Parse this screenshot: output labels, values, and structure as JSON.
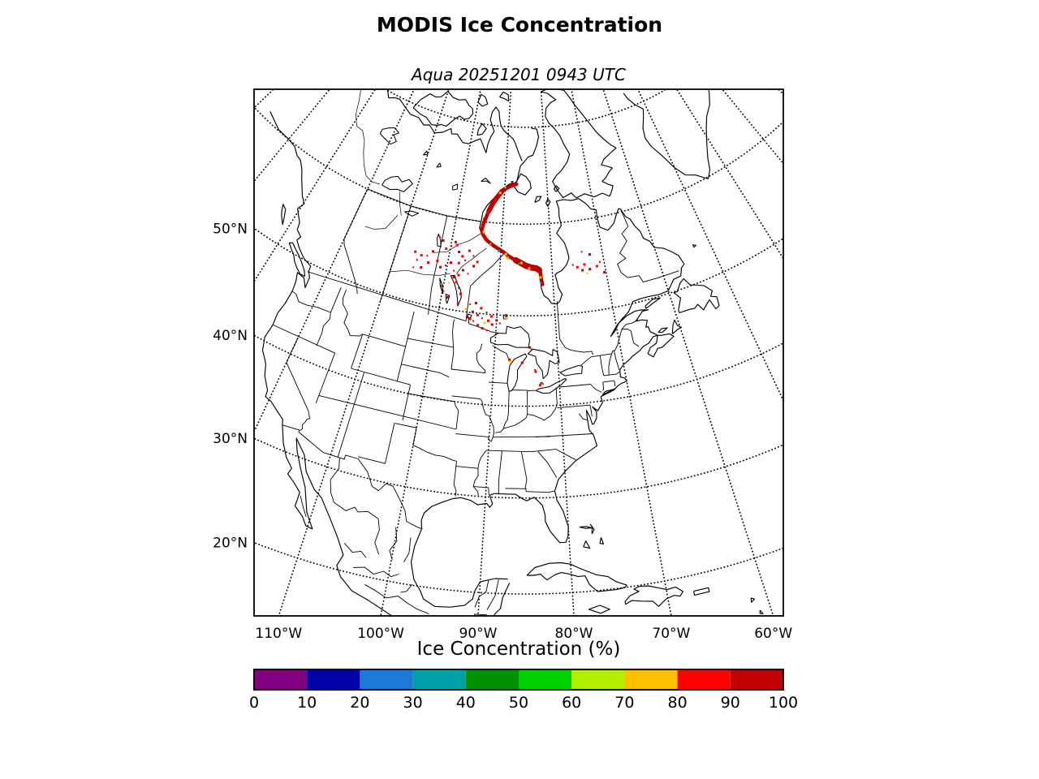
{
  "figure": {
    "title": "MODIS Ice Concentration",
    "subtitle": "Aqua 20251201 0943 UTC"
  },
  "map": {
    "lat_ticks": [
      {
        "label": "50°N",
        "value": 50
      },
      {
        "label": "40°N",
        "value": 40
      },
      {
        "label": "30°N",
        "value": 30
      },
      {
        "label": "20°N",
        "value": 20
      }
    ],
    "lon_ticks": [
      {
        "label": "110°W",
        "value": -110
      },
      {
        "label": "100°W",
        "value": -100
      },
      {
        "label": "90°W",
        "value": -90
      },
      {
        "label": "80°W",
        "value": -80
      },
      {
        "label": "70°W",
        "value": -70
      },
      {
        "label": "60°W",
        "value": -60
      }
    ],
    "line_color": "#000000"
  },
  "colorbar": {
    "title": "Ice Concentration (%)",
    "tick_labels": [
      "0",
      "10",
      "20",
      "30",
      "40",
      "50",
      "60",
      "70",
      "80",
      "90",
      "100"
    ],
    "colors": [
      "#800080",
      "#0000a8",
      "#1e78d8",
      "#00a0a8",
      "#009000",
      "#00d000",
      "#b0f000",
      "#ffc000",
      "#ff0000",
      "#c00000"
    ]
  },
  "chart_data": {
    "type": "heatmap",
    "title": "MODIS Ice Concentration",
    "subtitle": "Aqua 20251201 0943 UTC",
    "region": "North America (conic projection)",
    "x_tick_labels": [
      "110°W",
      "100°W",
      "90°W",
      "80°W",
      "70°W",
      "60°W"
    ],
    "y_tick_labels": [
      "50°N",
      "40°N",
      "30°N",
      "20°N"
    ],
    "colorbar": {
      "label": "Ice Concentration (%)",
      "ticks": [
        0,
        10,
        20,
        30,
        40,
        50,
        60,
        70,
        80,
        90,
        100
      ],
      "colors": [
        "#800080",
        "#0000a8",
        "#1e78d8",
        "#00a0a8",
        "#009000",
        "#00d000",
        "#b0f000",
        "#ffc000",
        "#ff0000",
        "#c00000"
      ]
    },
    "ice_band_pct": 95,
    "ice_band": {
      "main": [
        [
          -87.3,
          64.2
        ],
        [
          -88.6,
          64.0
        ],
        [
          -89.7,
          63.7
        ],
        [
          -90.5,
          63.4
        ],
        [
          -90.8,
          63.2
        ],
        [
          -91.9,
          62.5
        ],
        [
          -92.6,
          61.9
        ],
        [
          -93.3,
          61.1
        ],
        [
          -93.7,
          60.4
        ],
        [
          -94.1,
          59.7
        ],
        [
          -94.3,
          59.1
        ],
        [
          -93.9,
          58.6
        ],
        [
          -93.1,
          58.1
        ],
        [
          -92.3,
          57.8
        ],
        [
          -91.4,
          57.5
        ],
        [
          -90.4,
          57.2
        ],
        [
          -89.4,
          56.9
        ],
        [
          -88.4,
          56.5
        ],
        [
          -87.4,
          56.2
        ],
        [
          -86.4,
          55.9
        ],
        [
          -85.4,
          55.6
        ],
        [
          -84.4,
          55.4
        ],
        [
          -83.4,
          55.3
        ],
        [
          -82.6,
          55.2
        ],
        [
          -82.3,
          54.7
        ],
        [
          -82.2,
          54.1
        ],
        [
          -82.0,
          53.5
        ]
      ],
      "south_thick": [
        [
          -87.0,
          56.1
        ],
        [
          -86.0,
          55.8
        ],
        [
          -85.0,
          55.5
        ],
        [
          -84.0,
          55.3
        ],
        [
          -83.0,
          55.2
        ],
        [
          -82.5,
          55.0
        ]
      ],
      "upper_thick": [
        [
          -90.6,
          63.4
        ],
        [
          -91.8,
          62.6
        ],
        [
          -92.5,
          62.0
        ],
        [
          -93.2,
          61.2
        ]
      ],
      "james": [
        [
          -82.2,
          54.8
        ],
        [
          -82.1,
          54.0
        ],
        [
          -81.9,
          53.4
        ]
      ]
    },
    "ice_points": [
      [
        -90.5,
        63.6,
        95
      ],
      [
        -91.3,
        63.0,
        95
      ],
      [
        -92.0,
        62.4,
        85
      ],
      [
        -92.8,
        61.6,
        95
      ],
      [
        -93.5,
        61.0,
        85
      ],
      [
        -91.0,
        63.2,
        75
      ],
      [
        -89.9,
        63.8,
        65
      ],
      [
        -88.3,
        64.4,
        95
      ],
      [
        -94.0,
        60.3,
        95
      ],
      [
        -94.3,
        59.6,
        85
      ],
      [
        -99.2,
        57.4,
        95
      ],
      [
        -98.8,
        57.1,
        85
      ],
      [
        -99.9,
        56.9,
        95
      ],
      [
        -100.8,
        56.5,
        85
      ],
      [
        -101.7,
        57.3,
        95
      ],
      [
        -102.5,
        57.6,
        85
      ],
      [
        -98.2,
        56.4,
        95
      ],
      [
        -97.4,
        56.0,
        85
      ],
      [
        -96.8,
        55.6,
        95
      ],
      [
        -97.9,
        55.2,
        85
      ],
      [
        -99.4,
        55.1,
        95
      ],
      [
        -100.3,
        54.7,
        85
      ],
      [
        -101.2,
        54.4,
        95
      ],
      [
        -102.0,
        55.0,
        85
      ],
      [
        -98.6,
        54.3,
        95
      ],
      [
        -97.6,
        53.9,
        85
      ],
      [
        -96.9,
        54.5,
        95
      ],
      [
        -95.9,
        54.2,
        85
      ],
      [
        -95.0,
        55.1,
        95
      ],
      [
        -96.2,
        56.7,
        85
      ],
      [
        -95.3,
        56.2,
        95
      ],
      [
        -94.4,
        55.6,
        85
      ],
      [
        -103.2,
        55.9,
        95
      ],
      [
        -104.1,
        55.3,
        85
      ],
      [
        -103.6,
        54.6,
        95
      ],
      [
        -105.2,
        55.2,
        85
      ],
      [
        -105.8,
        54.6,
        95
      ],
      [
        -106.5,
        55.4,
        85
      ],
      [
        -104.7,
        53.9,
        95
      ],
      [
        -106.1,
        53.7,
        85
      ],
      [
        -98.4,
        53.6,
        95
      ],
      [
        -97.8,
        53.1,
        85
      ],
      [
        -97.2,
        52.5,
        95
      ],
      [
        -96.7,
        51.9,
        85
      ],
      [
        -100.2,
        52.4,
        95
      ],
      [
        -99.8,
        51.9,
        85
      ],
      [
        -98.9,
        51.3,
        95
      ],
      [
        -96.9,
        50.8,
        85
      ],
      [
        -99.1,
        52.9,
        75
      ],
      [
        -95.0,
        49.5,
        95
      ],
      [
        -94.5,
        49.3,
        85
      ],
      [
        -93.9,
        49.1,
        95
      ],
      [
        -93.1,
        48.7,
        85
      ],
      [
        -92.3,
        48.4,
        95
      ],
      [
        -91.5,
        48.2,
        85
      ],
      [
        -94.2,
        50.1,
        95
      ],
      [
        -93.3,
        49.8,
        85
      ],
      [
        -92.5,
        49.5,
        95
      ],
      [
        -91.4,
        49.3,
        85
      ],
      [
        -90.7,
        48.9,
        95
      ],
      [
        -94.8,
        50.9,
        85
      ],
      [
        -93.8,
        51.1,
        95
      ],
      [
        -92.8,
        50.6,
        85
      ],
      [
        -91.8,
        50.2,
        95
      ],
      [
        -90.9,
        49.8,
        85
      ],
      [
        -90.0,
        49.4,
        95
      ],
      [
        -89.4,
        49.1,
        85
      ],
      [
        -95.4,
        50.3,
        75
      ],
      [
        -92.0,
        49.0,
        65
      ],
      [
        -88.5,
        49.9,
        95
      ],
      [
        -88.3,
        49.7,
        75
      ],
      [
        -84.4,
        46.5,
        95
      ],
      [
        -84.1,
        46.3,
        85
      ],
      [
        -87.6,
        45.1,
        95
      ],
      [
        -87.4,
        44.9,
        75
      ],
      [
        -83.6,
        44.0,
        95
      ],
      [
        -83.5,
        43.8,
        85
      ],
      [
        -82.7,
        42.5,
        95
      ],
      [
        -82.6,
        42.4,
        75
      ],
      [
        -82.9,
        42.3,
        85
      ],
      [
        -85.6,
        44.8,
        95
      ],
      [
        -76.0,
        55.3,
        95
      ],
      [
        -75.2,
        55.0,
        85
      ],
      [
        -74.3,
        54.6,
        95
      ],
      [
        -73.5,
        54.2,
        75
      ],
      [
        -72.9,
        54.6,
        95
      ],
      [
        -73.8,
        55.2,
        85
      ],
      [
        -70.8,
        55.2,
        95
      ],
      [
        -71.5,
        54.8,
        85
      ],
      [
        -72.5,
        56.2,
        95
      ],
      [
        -74.0,
        56.6,
        85
      ],
      [
        -70.3,
        54.0,
        95
      ],
      [
        -93.8,
        58.9,
        75
      ],
      [
        -92.2,
        57.7,
        65
      ],
      [
        -90.4,
        57.0,
        35
      ],
      [
        -88.6,
        56.3,
        75
      ],
      [
        -86.4,
        55.7,
        55
      ],
      [
        -84.4,
        55.2,
        75
      ],
      [
        -82.3,
        54.2,
        65
      ],
      [
        -82.2,
        53.6,
        25
      ],
      [
        -85.9,
        55.8,
        65
      ],
      [
        -89.0,
        56.7,
        75
      ]
    ]
  }
}
